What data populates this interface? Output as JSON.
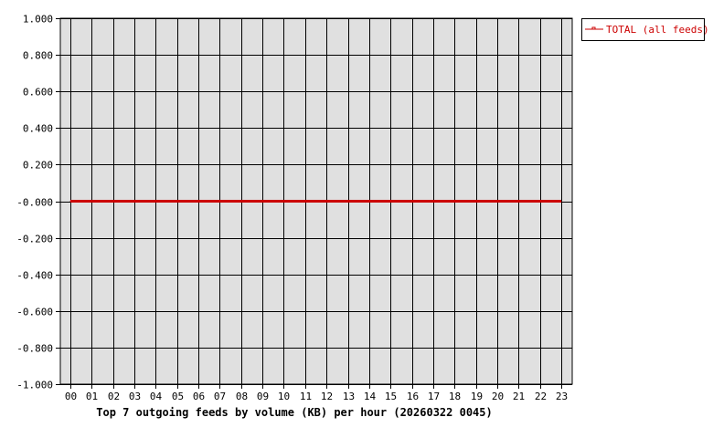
{
  "chart_data": {
    "type": "line",
    "title": "Top 7 outgoing feeds by volume (KB) per hour (20260322 0045)",
    "xlabel": "",
    "ylabel": "",
    "categories": [
      "00",
      "01",
      "02",
      "03",
      "04",
      "05",
      "06",
      "07",
      "08",
      "09",
      "10",
      "11",
      "12",
      "13",
      "14",
      "15",
      "16",
      "17",
      "18",
      "19",
      "20",
      "21",
      "22",
      "23"
    ],
    "y_tick_labels": [
      "1.000",
      "0.800",
      "0.600",
      "0.400",
      "0.200",
      "-0.000",
      "-0.200",
      "-0.400",
      "-0.600",
      "-0.800",
      "-1.000"
    ],
    "ylim": [
      -1,
      1
    ],
    "grid": true,
    "legend_position": "right",
    "background_color": "#e0e0e0",
    "series": [
      {
        "name": "TOTAL (all feeds)",
        "color": "#cc0000",
        "values": [
          0,
          0,
          0,
          0,
          0,
          0,
          0,
          0,
          0,
          0,
          0,
          0,
          0,
          0,
          0,
          0,
          0,
          0,
          0,
          0,
          0,
          0,
          0,
          0
        ]
      }
    ]
  }
}
